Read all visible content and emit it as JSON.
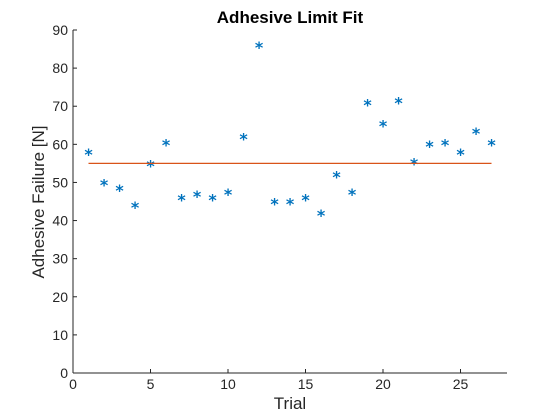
{
  "chart_data": {
    "type": "scatter",
    "title": "Adhesive Limit Fit",
    "xlabel": "Trial",
    "ylabel": "Adhesive Failure [N]",
    "xlim": [
      0,
      28
    ],
    "ylim": [
      0,
      90
    ],
    "xticks": [
      0,
      5,
      10,
      15,
      20,
      25
    ],
    "yticks": [
      0,
      10,
      20,
      30,
      40,
      50,
      60,
      70,
      80,
      90
    ],
    "grid": false,
    "series": [
      {
        "type": "scatter",
        "marker": "*",
        "color": "#0072BD",
        "x": [
          1,
          2,
          3,
          4,
          5,
          6,
          7,
          8,
          9,
          10,
          11,
          12,
          13,
          14,
          15,
          16,
          17,
          18,
          19,
          20,
          21,
          22,
          23,
          24,
          25,
          26,
          27
        ],
        "y": [
          57.5,
          49.5,
          48,
          43.5,
          54.5,
          60,
          45.5,
          46.5,
          45.5,
          47,
          61.5,
          85.5,
          44.5,
          44.5,
          45.5,
          41.5,
          51.5,
          47,
          70.5,
          65,
          71,
          55,
          59.5,
          60,
          57.5,
          63,
          60
        ]
      },
      {
        "type": "line",
        "color": "#D95319",
        "x": [
          1,
          27
        ],
        "y": [
          55,
          55
        ]
      }
    ]
  }
}
